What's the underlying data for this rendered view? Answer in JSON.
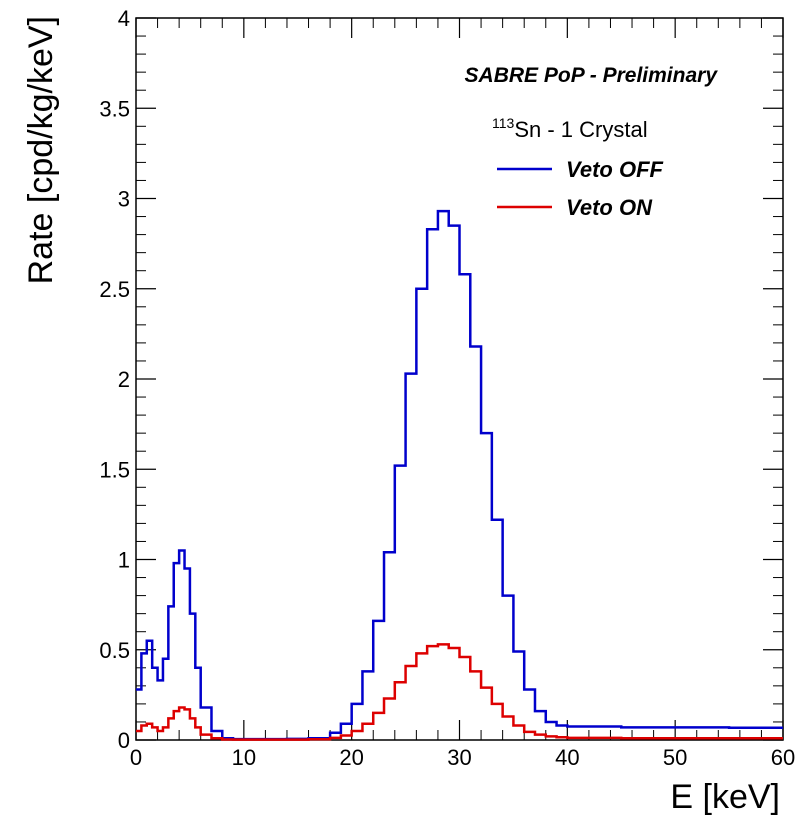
{
  "chart_data": {
    "type": "line",
    "title": "SABRE PoP - Preliminary",
    "annotation": {
      "superscript": "113",
      "text": "Sn - 1 Crystal"
    },
    "xlabel": "E [keV]",
    "ylabel": "Rate [cpd/kg/keV]",
    "xlim": [
      0,
      60
    ],
    "ylim": [
      0,
      4
    ],
    "x_ticks": [
      0,
      10,
      20,
      30,
      40,
      50,
      60
    ],
    "y_ticks": [
      0,
      0.5,
      1,
      1.5,
      2,
      2.5,
      3,
      3.5,
      4
    ],
    "x_tick_labels": [
      "0",
      "10",
      "20",
      "30",
      "40",
      "50",
      "60"
    ],
    "y_tick_labels": [
      "0",
      "0.5",
      "1",
      "1.5",
      "2",
      "2.5",
      "3",
      "3.5",
      "4"
    ],
    "grid": false,
    "legend_position": "top-right",
    "series": [
      {
        "name": "Veto OFF",
        "color": "#0000cc",
        "x": [
          0,
          0.5,
          1,
          1.5,
          2,
          2.5,
          3,
          3.5,
          4,
          4.5,
          5,
          5.5,
          6,
          7,
          8,
          9,
          10,
          12,
          14,
          16,
          18,
          19,
          20,
          21,
          22,
          23,
          24,
          25,
          26,
          27,
          28,
          29,
          30,
          31,
          32,
          33,
          34,
          35,
          36,
          37,
          38,
          39,
          40,
          45,
          50,
          55,
          60
        ],
        "values": [
          0.28,
          0.48,
          0.55,
          0.4,
          0.33,
          0.45,
          0.74,
          0.98,
          1.05,
          0.95,
          0.7,
          0.4,
          0.18,
          0.05,
          0.01,
          0.005,
          0.005,
          0.005,
          0.006,
          0.01,
          0.04,
          0.09,
          0.2,
          0.38,
          0.66,
          1.04,
          1.52,
          2.03,
          2.5,
          2.83,
          2.93,
          2.85,
          2.58,
          2.18,
          1.7,
          1.22,
          0.8,
          0.49,
          0.28,
          0.16,
          0.1,
          0.08,
          0.075,
          0.07,
          0.07,
          0.068,
          0.068
        ]
      },
      {
        "name": "Veto ON",
        "color": "#dd0000",
        "x": [
          0,
          0.5,
          1,
          1.5,
          2,
          2.5,
          3,
          3.5,
          4,
          4.5,
          5,
          5.5,
          6,
          7,
          8,
          9,
          10,
          12,
          14,
          16,
          18,
          19,
          20,
          21,
          22,
          23,
          24,
          25,
          26,
          27,
          28,
          29,
          30,
          31,
          32,
          33,
          34,
          35,
          36,
          37,
          38,
          39,
          40,
          45,
          50,
          55,
          60
        ],
        "values": [
          0.05,
          0.08,
          0.09,
          0.07,
          0.05,
          0.07,
          0.12,
          0.16,
          0.18,
          0.17,
          0.12,
          0.07,
          0.03,
          0.01,
          0.003,
          0.002,
          0.002,
          0.002,
          0.002,
          0.004,
          0.012,
          0.025,
          0.05,
          0.09,
          0.15,
          0.23,
          0.32,
          0.41,
          0.48,
          0.52,
          0.53,
          0.51,
          0.46,
          0.38,
          0.29,
          0.2,
          0.13,
          0.08,
          0.045,
          0.03,
          0.02,
          0.015,
          0.012,
          0.01,
          0.01,
          0.01,
          0.01
        ]
      }
    ]
  }
}
